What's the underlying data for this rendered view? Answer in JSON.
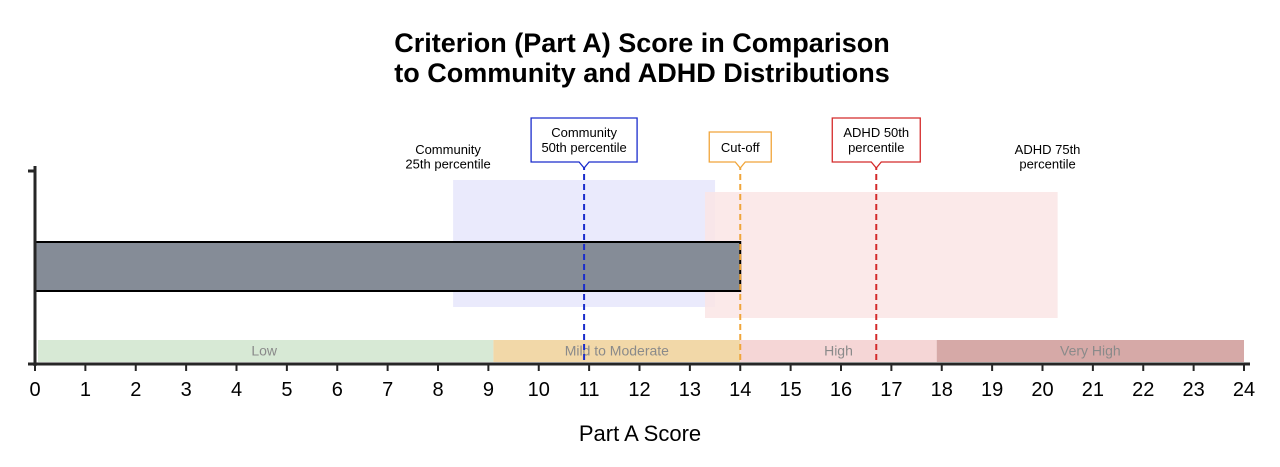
{
  "chart_data": {
    "type": "bar",
    "orientation": "horizontal",
    "title_lines": [
      "Criterion (Part A) Score in Comparison",
      "to Community and ADHD Distributions"
    ],
    "xlabel": "Part A Score",
    "ylabel": "",
    "xlim": [
      0,
      24
    ],
    "xticks": [
      0,
      1,
      2,
      3,
      4,
      5,
      6,
      7,
      8,
      9,
      10,
      11,
      12,
      13,
      14,
      15,
      16,
      17,
      18,
      19,
      20,
      21,
      22,
      23,
      24
    ],
    "score": 14,
    "bar_color": "#858c97",
    "distributions": [
      {
        "name": "Community",
        "start": 8.3,
        "end": 13.5,
        "color": "#e6e6fb"
      },
      {
        "name": "ADHD",
        "start": 13.3,
        "end": 20.3,
        "color": "#fae5e5"
      }
    ],
    "severity_bands": [
      {
        "label": "Low",
        "start": 0,
        "end": 9.1,
        "color": "#d7e9d5"
      },
      {
        "label": "Mild to Moderate",
        "start": 9.1,
        "end": 14,
        "color": "#f2d8a8"
      },
      {
        "label": "High",
        "start": 14,
        "end": 17.9,
        "color": "#f5d6d6"
      },
      {
        "label": "Very High",
        "start": 17.9,
        "end": 24,
        "color": "#d6a9a7"
      }
    ],
    "reference_lines": [
      {
        "name": "community-50th",
        "value": 10.9,
        "label_lines": [
          "Community",
          "50th percentile"
        ],
        "color": "#1a2ccc",
        "boxed": true
      },
      {
        "name": "cut-off",
        "value": 14,
        "label_lines": [
          "Cut-off"
        ],
        "color": "#f0a53a",
        "boxed": true
      },
      {
        "name": "adhd-50th",
        "value": 16.7,
        "label_lines": [
          "ADHD 50th",
          "percentile"
        ],
        "color": "#d42a2a",
        "boxed": true
      }
    ],
    "annotations": [
      {
        "name": "community-25th",
        "value": 8.2,
        "label_lines": [
          "Community",
          "25th percentile"
        ]
      },
      {
        "name": "adhd-75th",
        "value": 20.1,
        "label_lines": [
          "ADHD 75th",
          "percentile"
        ]
      }
    ]
  }
}
